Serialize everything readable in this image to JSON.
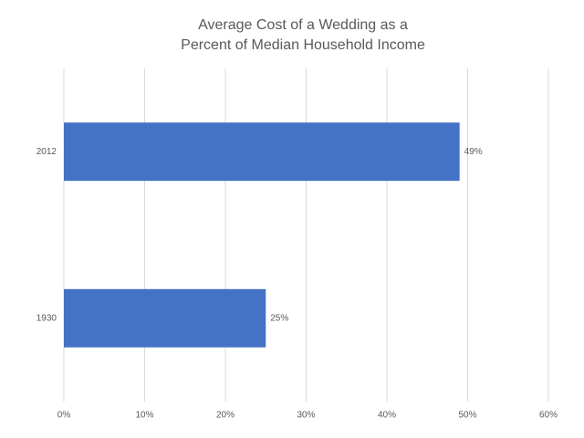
{
  "chart_data": {
    "type": "bar",
    "orientation": "horizontal",
    "title": [
      "Average Cost of a Wedding as a",
      "Percent of Median Household Income"
    ],
    "categories": [
      "2012",
      "1930"
    ],
    "values": [
      49,
      25
    ],
    "value_labels": [
      "49%",
      "25%"
    ],
    "color": "#4472c4",
    "xlim": [
      0,
      60
    ],
    "xticks": [
      {
        "value": 0,
        "label": "0%"
      },
      {
        "value": 10,
        "label": "10%"
      },
      {
        "value": 20,
        "label": "20%"
      },
      {
        "value": 30,
        "label": "30%"
      },
      {
        "value": 40,
        "label": "40%"
      },
      {
        "value": 50,
        "label": "50%"
      },
      {
        "value": 60,
        "label": "60%"
      }
    ],
    "grid": true
  }
}
